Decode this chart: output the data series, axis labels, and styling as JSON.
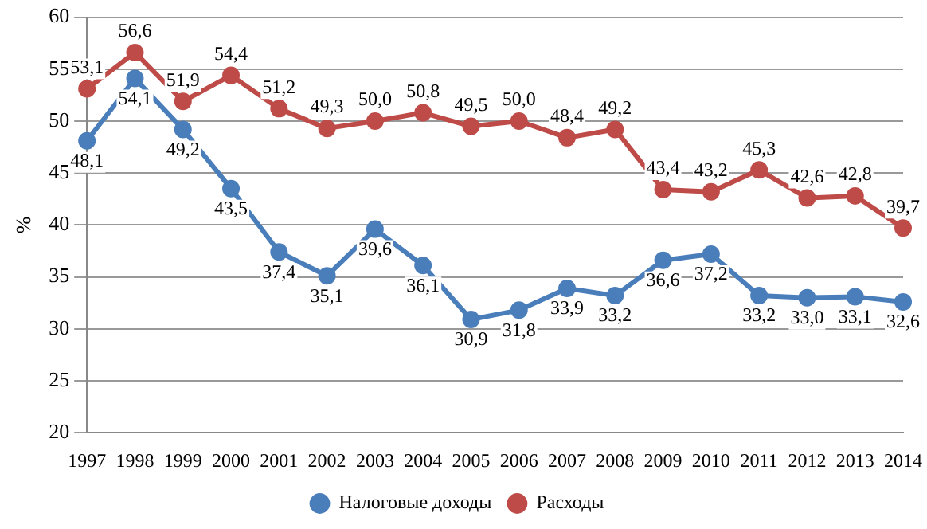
{
  "chart_data": {
    "type": "line",
    "ylabel": "%",
    "categories": [
      "1997",
      "1998",
      "1999",
      "2000",
      "2001",
      "2002",
      "2003",
      "2004",
      "2005",
      "2006",
      "2007",
      "2008",
      "2009",
      "2010",
      "2011",
      "2012",
      "2013",
      "2014"
    ],
    "series": [
      {
        "name": "Налоговые доходы",
        "color": "#4a7ebb",
        "values": [
          48.1,
          54.1,
          49.2,
          43.5,
          37.4,
          35.1,
          39.6,
          36.1,
          30.9,
          31.8,
          33.9,
          33.2,
          36.6,
          37.2,
          33.2,
          33.0,
          33.1,
          32.6
        ],
        "value_labels": [
          "48,1",
          "54,1",
          "49,2",
          "43,5",
          "37,4",
          "35,1",
          "39,6",
          "36,1",
          "30,9",
          "31,8",
          "33,9",
          "33,2",
          "36,6",
          "37,2",
          "33,2",
          "33,0",
          "33,1",
          "32,6"
        ]
      },
      {
        "name": "Расходы",
        "color": "#be4b48",
        "values": [
          53.1,
          56.6,
          51.9,
          54.4,
          51.2,
          49.3,
          50.0,
          50.8,
          49.5,
          50.0,
          48.4,
          49.2,
          43.4,
          43.2,
          45.3,
          42.6,
          42.8,
          39.7
        ],
        "value_labels": [
          "53,1",
          "56,6",
          "51,9",
          "54,4",
          "51,2",
          "49,3",
          "50,0",
          "50,8",
          "49,5",
          "50,0",
          "48,4",
          "49,2",
          "43,4",
          "43,2",
          "45,3",
          "42,6",
          "42,8",
          "39,7"
        ]
      }
    ],
    "ylim": [
      20,
      60
    ],
    "yticks": [
      20,
      25,
      30,
      35,
      40,
      45,
      50,
      55,
      60
    ],
    "grid": "y",
    "legend": "bottom",
    "marker": "circle",
    "line_style": "solid"
  }
}
